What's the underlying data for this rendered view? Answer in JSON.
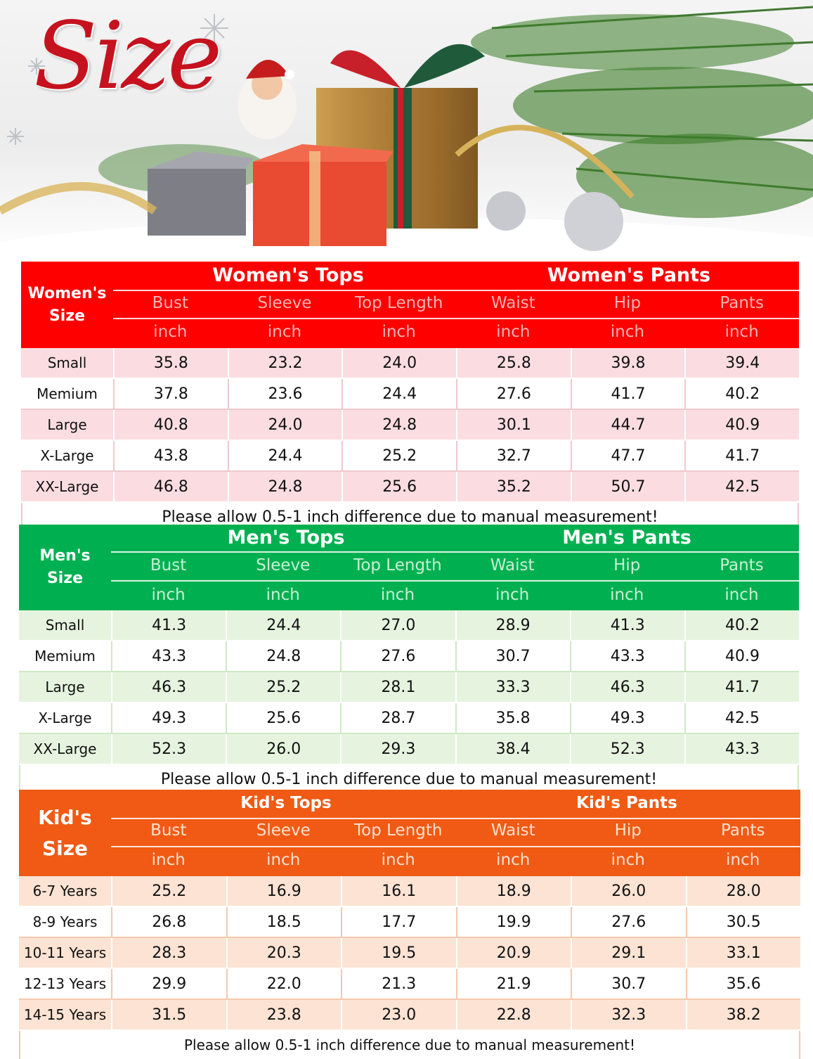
{
  "hero": {
    "title": "Size"
  },
  "tables": [
    {
      "size_label": "Women's Size",
      "tops_title": "Women's  Tops",
      "pants_title": "Women's  Pants",
      "columns": [
        "Bust",
        "Sleeve",
        "Top Length",
        "Waist",
        "Hip",
        "Pants"
      ],
      "units": [
        "inch",
        "inch",
        "inch",
        "inch",
        "inch",
        "inch"
      ],
      "rows": [
        [
          "Small",
          "35.8",
          "23.2",
          "24.0",
          "25.8",
          "39.8",
          "39.4"
        ],
        [
          "Memium",
          "37.8",
          "23.6",
          "24.4",
          "27.6",
          "41.7",
          "40.2"
        ],
        [
          "Large",
          "40.8",
          "24.0",
          "24.8",
          "30.1",
          "44.7",
          "40.9"
        ],
        [
          "X-Large",
          "43.8",
          "24.4",
          "25.2",
          "32.7",
          "47.7",
          "41.7"
        ],
        [
          "XX-Large",
          "46.8",
          "24.8",
          "25.6",
          "35.2",
          "50.7",
          "42.5"
        ]
      ],
      "note": "Please allow 0.5-1 inch difference due to manual measurement!"
    },
    {
      "size_label": "Men's Size",
      "tops_title": "Men's  Tops",
      "pants_title": "Men's  Pants",
      "columns": [
        "Bust",
        "Sleeve",
        "Top Length",
        "Waist",
        "Hip",
        "Pants"
      ],
      "units": [
        "inch",
        "inch",
        "inch",
        "inch",
        "inch",
        "inch"
      ],
      "rows": [
        [
          "Small",
          "41.3",
          "24.4",
          "27.0",
          "28.9",
          "41.3",
          "40.2"
        ],
        [
          "Memium",
          "43.3",
          "24.8",
          "27.6",
          "30.7",
          "43.3",
          "40.9"
        ],
        [
          "Large",
          "46.3",
          "25.2",
          "28.1",
          "33.3",
          "46.3",
          "41.7"
        ],
        [
          "X-Large",
          "49.3",
          "25.6",
          "28.7",
          "35.8",
          "49.3",
          "42.5"
        ],
        [
          "XX-Large",
          "52.3",
          "26.0",
          "29.3",
          "38.4",
          "52.3",
          "43.3"
        ]
      ],
      "note": "Please allow 0.5-1 inch difference due to manual measurement!"
    },
    {
      "size_label": "Kid's Size",
      "tops_title": "Kid's  Tops",
      "pants_title": "Kid's  Pants",
      "columns": [
        "Bust",
        "Sleeve",
        "Top Length",
        "Waist",
        "Hip",
        "Pants"
      ],
      "units": [
        "inch",
        "inch",
        "inch",
        "inch",
        "inch",
        "inch"
      ],
      "rows": [
        [
          "6-7 Years",
          "25.2",
          "16.9",
          "16.1",
          "18.9",
          "26.0",
          "28.0"
        ],
        [
          "8-9 Years",
          "26.8",
          "18.5",
          "17.7",
          "19.9",
          "27.6",
          "30.5"
        ],
        [
          "10-11 Years",
          "28.3",
          "20.3",
          "19.5",
          "20.9",
          "29.1",
          "33.1"
        ],
        [
          "12-13 Years",
          "29.9",
          "22.0",
          "21.3",
          "21.9",
          "30.7",
          "35.6"
        ],
        [
          "14-15 Years",
          "31.5",
          "23.8",
          "23.0",
          "22.8",
          "32.3",
          "38.2"
        ]
      ],
      "note": "Please allow 0.5-1 inch difference due to manual measurement!"
    }
  ],
  "colors": {
    "women_header": "#ff0000",
    "women_header_text_faint": "#ffb3b3",
    "women_row_tint": "#fbdde1",
    "men_header": "#00b050",
    "men_header_text_faint": "#c8f0d6",
    "men_row_tint": "#e6f4df",
    "kids_header": "#f05a14",
    "kids_header_text_faint": "#ffe0cf",
    "kids_row_tint": "#fce3d3"
  }
}
